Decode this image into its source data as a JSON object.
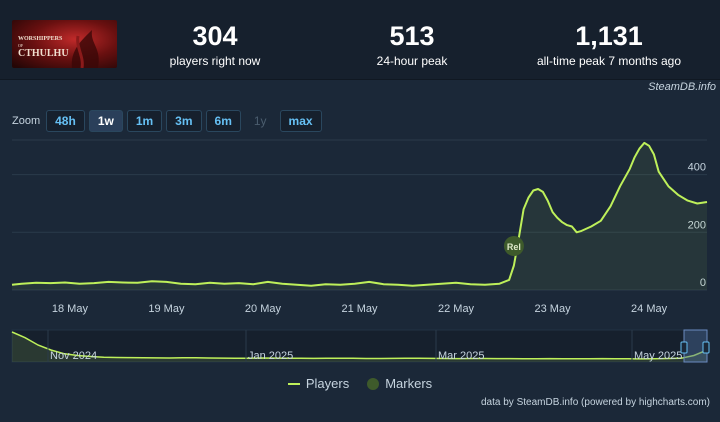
{
  "stats": [
    {
      "value": "304",
      "label": "players right now"
    },
    {
      "value": "513",
      "label": "24-hour peak"
    },
    {
      "value": "1,131",
      "label": "all-time peak 7 months ago"
    }
  ],
  "credit_top": "SteamDB.info",
  "zoom": {
    "label": "Zoom",
    "buttons": [
      {
        "label": "48h",
        "state": "normal"
      },
      {
        "label": "1w",
        "state": "active"
      },
      {
        "label": "1m",
        "state": "normal"
      },
      {
        "label": "3m",
        "state": "normal"
      },
      {
        "label": "6m",
        "state": "normal"
      },
      {
        "label": "1y",
        "state": "disabled"
      },
      {
        "label": "max",
        "state": "normal"
      }
    ]
  },
  "legend": {
    "players": "Players",
    "markers": "Markers"
  },
  "credit_bottom": "data by SteamDB.info (powered by highcharts.com)",
  "colors": {
    "line": "#bef05a",
    "marker": "#3e5a2b",
    "grid": "#2b3a4a"
  },
  "chart_data": {
    "type": "line",
    "x_range_days": [
      17.4,
      24.6
    ],
    "ylim": [
      0,
      520
    ],
    "y_ticks": [
      0,
      200,
      400
    ],
    "x_ticks": [
      {
        "label": "18 May",
        "day": 18
      },
      {
        "label": "19 May",
        "day": 19
      },
      {
        "label": "20 May",
        "day": 20
      },
      {
        "label": "21 May",
        "day": 21
      },
      {
        "label": "22 May",
        "day": 22
      },
      {
        "label": "23 May",
        "day": 23
      },
      {
        "label": "24 May",
        "day": 24
      }
    ],
    "series": [
      {
        "name": "Players",
        "x": [
          17.4,
          17.5,
          17.65,
          17.8,
          17.95,
          18.1,
          18.25,
          18.4,
          18.55,
          18.7,
          18.85,
          19.0,
          19.15,
          19.3,
          19.45,
          19.6,
          19.75,
          19.9,
          20.05,
          20.2,
          20.35,
          20.5,
          20.65,
          20.8,
          20.95,
          21.1,
          21.25,
          21.4,
          21.55,
          21.7,
          21.85,
          22.0,
          22.15,
          22.3,
          22.45,
          22.55,
          22.6,
          22.65,
          22.7,
          22.75,
          22.8,
          22.85,
          22.9,
          22.95,
          23.0,
          23.05,
          23.1,
          23.15,
          23.2,
          23.25,
          23.3,
          23.4,
          23.5,
          23.6,
          23.7,
          23.8,
          23.85,
          23.9,
          23.95,
          24.0,
          24.05,
          24.1,
          24.2,
          24.3,
          24.4,
          24.5,
          24.6
        ],
        "y": [
          18,
          22,
          25,
          24,
          26,
          22,
          24,
          28,
          26,
          25,
          30,
          28,
          22,
          20,
          25,
          22,
          24,
          20,
          28,
          22,
          18,
          15,
          20,
          18,
          22,
          28,
          20,
          18,
          15,
          18,
          22,
          25,
          20,
          18,
          22,
          35,
          85,
          180,
          280,
          320,
          345,
          350,
          340,
          310,
          270,
          250,
          235,
          225,
          220,
          200,
          205,
          220,
          240,
          290,
          360,
          420,
          460,
          490,
          510,
          500,
          470,
          410,
          360,
          330,
          310,
          300,
          305
        ]
      }
    ],
    "markers": [
      {
        "label": "Rel",
        "day": 22.6
      }
    ],
    "navigator": {
      "x_labels": [
        "Nov 2024",
        "Jan 2025",
        "Mar 2025",
        "May 2025"
      ],
      "y": [
        1131,
        900,
        600,
        400,
        250,
        180,
        140,
        110,
        100,
        95,
        90,
        85,
        80,
        88,
        90,
        80,
        75,
        70,
        72,
        80,
        75,
        70,
        68,
        65,
        70,
        72,
        68,
        62,
        60,
        65,
        70,
        68,
        64,
        60,
        58,
        62,
        60,
        58,
        55,
        52,
        54,
        56,
        50,
        48,
        52,
        55,
        50,
        48,
        46,
        50,
        60,
        70,
        180,
        400
      ]
    }
  }
}
